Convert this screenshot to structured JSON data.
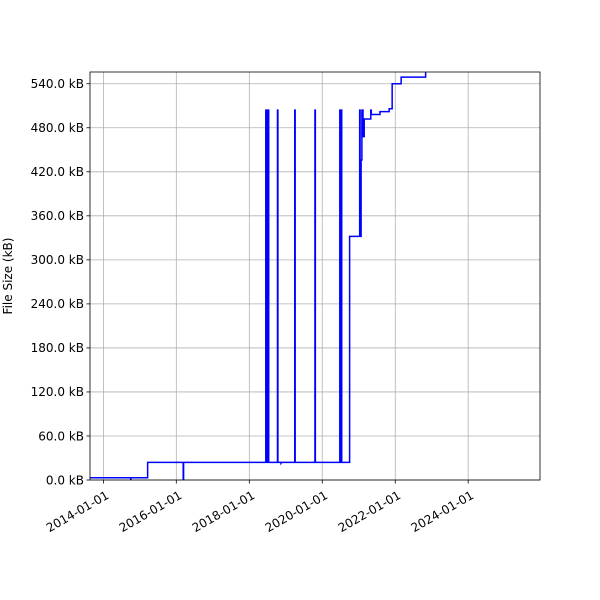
{
  "chart_data": {
    "type": "line",
    "ylabel": "File Size (kB)",
    "xlim": [
      "2013-08-20",
      "2025-12-20"
    ],
    "ylim": [
      0,
      556
    ],
    "grid": true,
    "line_color": "#0000ff",
    "x_ticks": [
      {
        "date": "2014-01-01",
        "label": "2014-01-01"
      },
      {
        "date": "2016-01-01",
        "label": "2016-01-01"
      },
      {
        "date": "2018-01-01",
        "label": "2018-01-01"
      },
      {
        "date": "2020-01-01",
        "label": "2020-01-01"
      },
      {
        "date": "2022-01-01",
        "label": "2022-01-01"
      },
      {
        "date": "2024-01-01",
        "label": "2024-01-01"
      }
    ],
    "y_ticks": [
      {
        "value": 0,
        "label": "0.0 kB"
      },
      {
        "value": 60,
        "label": "60.0 kB"
      },
      {
        "value": 120,
        "label": "120.0 kB"
      },
      {
        "value": 180,
        "label": "180.0 kB"
      },
      {
        "value": 240,
        "label": "240.0 kB"
      },
      {
        "value": 300,
        "label": "300.0 kB"
      },
      {
        "value": 360,
        "label": "360.0 kB"
      },
      {
        "value": 420,
        "label": "420.0 kB"
      },
      {
        "value": 480,
        "label": "480.0 kB"
      },
      {
        "value": 540,
        "label": "540.0 kB"
      }
    ],
    "series": [
      {
        "points": [
          [
            "2013-08-20",
            3
          ],
          [
            "2014-10-01",
            3
          ],
          [
            "2014-10-02",
            0
          ],
          [
            "2014-10-04",
            3
          ],
          [
            "2015-03-20",
            3
          ],
          [
            "2015-03-20",
            24
          ],
          [
            "2016-03-10",
            24
          ],
          [
            "2016-03-10",
            0
          ],
          [
            "2016-03-14",
            0
          ],
          [
            "2016-03-14",
            24
          ],
          [
            "2018-06-15",
            24
          ],
          [
            "2018-06-15",
            504
          ],
          [
            "2018-06-20",
            504
          ],
          [
            "2018-06-20",
            24
          ],
          [
            "2018-06-28",
            24
          ],
          [
            "2018-06-28",
            504
          ],
          [
            "2018-07-02",
            504
          ],
          [
            "2018-07-02",
            24
          ],
          [
            "2018-07-10",
            24
          ],
          [
            "2018-07-10",
            504
          ],
          [
            "2018-07-14",
            504
          ],
          [
            "2018-07-14",
            24
          ],
          [
            "2018-10-10",
            24
          ],
          [
            "2018-10-10",
            504
          ],
          [
            "2018-10-14",
            504
          ],
          [
            "2018-10-14",
            24
          ],
          [
            "2018-11-15",
            24
          ],
          [
            "2018-11-15",
            23
          ],
          [
            "2018-11-20",
            24
          ],
          [
            "2019-04-01",
            24
          ],
          [
            "2019-04-01",
            504
          ],
          [
            "2019-04-05",
            504
          ],
          [
            "2019-04-05",
            24
          ],
          [
            "2019-10-20",
            24
          ],
          [
            "2019-10-20",
            504
          ],
          [
            "2019-10-24",
            504
          ],
          [
            "2019-10-24",
            24
          ],
          [
            "2020-06-25",
            24
          ],
          [
            "2020-06-25",
            504
          ],
          [
            "2020-06-29",
            504
          ],
          [
            "2020-06-29",
            24
          ],
          [
            "2020-07-10",
            24
          ],
          [
            "2020-07-10",
            504
          ],
          [
            "2020-07-14",
            504
          ],
          [
            "2020-07-14",
            24
          ],
          [
            "2020-10-01",
            24
          ],
          [
            "2020-10-01",
            332
          ],
          [
            "2021-01-10",
            332
          ],
          [
            "2021-01-10",
            504
          ],
          [
            "2021-01-14",
            504
          ],
          [
            "2021-01-14",
            332
          ],
          [
            "2021-01-24",
            332
          ],
          [
            "2021-01-24",
            436
          ],
          [
            "2021-02-01",
            436
          ],
          [
            "2021-02-01",
            504
          ],
          [
            "2021-02-12",
            504
          ],
          [
            "2021-02-12",
            468
          ],
          [
            "2021-02-24",
            468
          ],
          [
            "2021-02-24",
            492
          ],
          [
            "2021-05-01",
            492
          ],
          [
            "2021-05-01",
            504
          ],
          [
            "2021-05-06",
            504
          ],
          [
            "2021-05-06",
            498
          ],
          [
            "2021-08-01",
            498
          ],
          [
            "2021-08-01",
            502
          ],
          [
            "2021-11-01",
            502
          ],
          [
            "2021-11-01",
            506
          ],
          [
            "2021-12-01",
            506
          ],
          [
            "2021-12-01",
            540
          ],
          [
            "2022-03-01",
            540
          ],
          [
            "2022-03-01",
            549
          ],
          [
            "2022-11-01",
            549
          ],
          [
            "2022-11-01",
            556
          ]
        ]
      }
    ]
  }
}
